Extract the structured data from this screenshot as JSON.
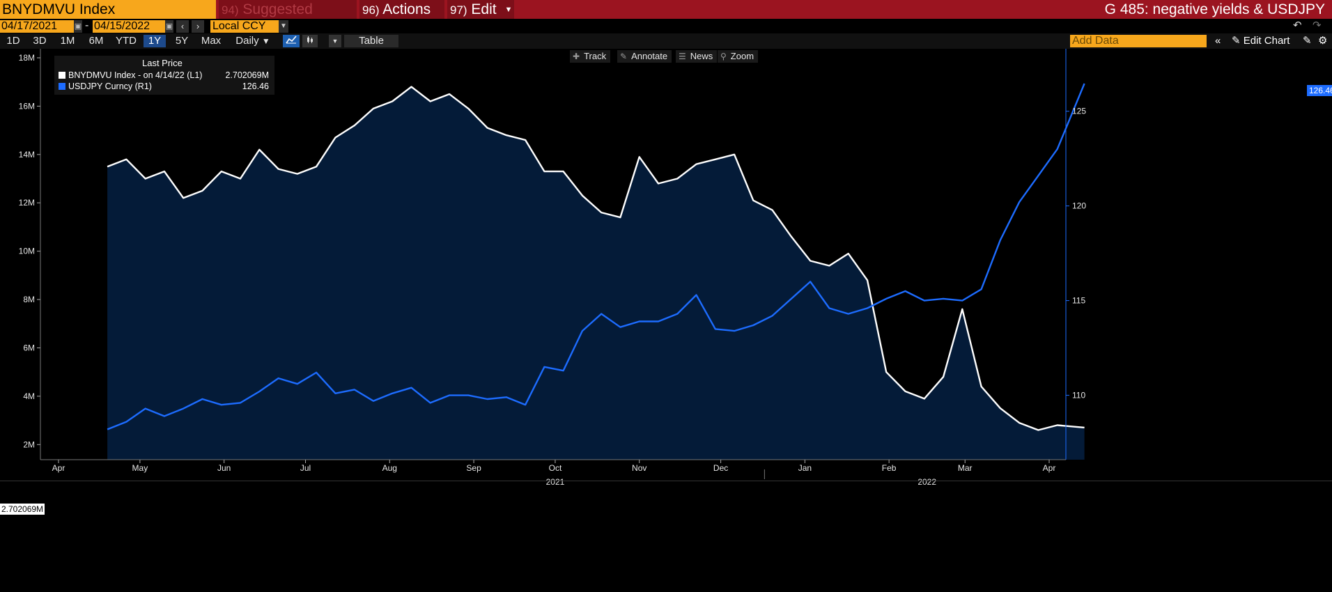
{
  "header": {
    "ticker": "BNYDMVU Index",
    "menus": [
      {
        "num": "94)",
        "label": "Suggested Charts"
      },
      {
        "num": "96)",
        "label": "Actions"
      },
      {
        "num": "97)",
        "label": "Edit"
      }
    ],
    "chart_title": "G 485: negative yields & USDJPY"
  },
  "date_range": {
    "start": "04/17/2021",
    "separator": "-",
    "end": "04/15/2022",
    "currency": "Local CCY"
  },
  "toolbar": {
    "periods": [
      "1D",
      "3D",
      "1M",
      "6M",
      "YTD",
      "1Y",
      "5Y",
      "Max"
    ],
    "active_period": "1Y",
    "frequency": "Daily",
    "table_label": "Table",
    "add_data_placeholder": "Add Data",
    "edit_chart_label": "Edit Chart"
  },
  "chart_tools": [
    "Track",
    "Annotate",
    "News",
    "Zoom"
  ],
  "legend": {
    "header": "Last Price",
    "rows": [
      {
        "label": "BNYDMVU Index -  on 4/14/22  (L1)",
        "value": "2.702069M",
        "color": "#ffffff"
      },
      {
        "label": "USDJPY Curncy  (R1)",
        "value": "126.46",
        "color": "#1d6cff"
      }
    ]
  },
  "tags": {
    "left": "2.702069M",
    "right": "126.46"
  },
  "chart_data": {
    "type": "line",
    "x_start": "2021-04-19",
    "x_end": "2022-04-14",
    "x_ticks": [
      {
        "label": "Apr",
        "date": "2021-04-01"
      },
      {
        "label": "May",
        "date": "2021-05-01"
      },
      {
        "label": "Jun",
        "date": "2021-06-01"
      },
      {
        "label": "Jul",
        "date": "2021-07-01"
      },
      {
        "label": "Aug",
        "date": "2021-08-01"
      },
      {
        "label": "Sep",
        "date": "2021-09-01"
      },
      {
        "label": "Oct",
        "date": "2021-10-01"
      },
      {
        "label": "Nov",
        "date": "2021-11-01"
      },
      {
        "label": "Dec",
        "date": "2021-12-01"
      },
      {
        "label": "Jan",
        "date": "2022-01-01"
      },
      {
        "label": "Feb",
        "date": "2022-02-01"
      },
      {
        "label": "Mar",
        "date": "2022-03-01"
      },
      {
        "label": "Apr",
        "date": "2022-04-01"
      }
    ],
    "year_labels": [
      {
        "label": "2021",
        "date": "2021-10-01"
      },
      {
        "label": "2022",
        "date": "2022-02-15"
      }
    ],
    "y_left": {
      "min": 1000000,
      "max": 18000000,
      "ticks": [
        2000000,
        4000000,
        6000000,
        8000000,
        10000000,
        12000000,
        14000000,
        16000000,
        18000000
      ],
      "tick_labels": [
        "2M",
        "4M",
        "6M",
        "8M",
        "10M",
        "12M",
        "14M",
        "16M",
        "18M"
      ]
    },
    "y_right": {
      "min": 106.6,
      "max": 128.3,
      "ticks": [
        110,
        115,
        120,
        125
      ],
      "tick_labels": [
        "110",
        "115",
        "120",
        "125"
      ]
    },
    "series": [
      {
        "name": "BNYDMVU Index",
        "axis": "left",
        "color": "#ffffff",
        "fill": "#041b38",
        "points": [
          [
            "2021-04-19",
            13500000
          ],
          [
            "2021-04-26",
            13800000
          ],
          [
            "2021-05-03",
            13000000
          ],
          [
            "2021-05-10",
            13300000
          ],
          [
            "2021-05-17",
            12200000
          ],
          [
            "2021-05-24",
            12500000
          ],
          [
            "2021-05-31",
            13300000
          ],
          [
            "2021-06-07",
            13000000
          ],
          [
            "2021-06-14",
            14200000
          ],
          [
            "2021-06-21",
            13400000
          ],
          [
            "2021-06-28",
            13200000
          ],
          [
            "2021-07-05",
            13500000
          ],
          [
            "2021-07-12",
            14700000
          ],
          [
            "2021-07-19",
            15200000
          ],
          [
            "2021-07-26",
            15900000
          ],
          [
            "2021-08-02",
            16200000
          ],
          [
            "2021-08-09",
            16800000
          ],
          [
            "2021-08-16",
            16200000
          ],
          [
            "2021-08-23",
            16500000
          ],
          [
            "2021-08-30",
            15900000
          ],
          [
            "2021-09-06",
            15100000
          ],
          [
            "2021-09-13",
            14800000
          ],
          [
            "2021-09-20",
            14600000
          ],
          [
            "2021-09-27",
            13300000
          ],
          [
            "2021-10-04",
            13300000
          ],
          [
            "2021-10-11",
            12300000
          ],
          [
            "2021-10-18",
            11600000
          ],
          [
            "2021-10-25",
            11400000
          ],
          [
            "2021-11-01",
            13900000
          ],
          [
            "2021-11-08",
            12800000
          ],
          [
            "2021-11-15",
            13000000
          ],
          [
            "2021-11-22",
            13600000
          ],
          [
            "2021-11-29",
            13800000
          ],
          [
            "2021-12-06",
            14000000
          ],
          [
            "2021-12-13",
            12100000
          ],
          [
            "2021-12-20",
            11700000
          ],
          [
            "2021-12-27",
            10600000
          ],
          [
            "2022-01-03",
            9600000
          ],
          [
            "2022-01-10",
            9400000
          ],
          [
            "2022-01-17",
            9900000
          ],
          [
            "2022-01-24",
            8800000
          ],
          [
            "2022-01-31",
            5000000
          ],
          [
            "2022-02-07",
            4200000
          ],
          [
            "2022-02-14",
            3900000
          ],
          [
            "2022-02-21",
            4800000
          ],
          [
            "2022-02-28",
            7600000
          ],
          [
            "2022-03-07",
            4400000
          ],
          [
            "2022-03-14",
            3500000
          ],
          [
            "2022-03-21",
            2900000
          ],
          [
            "2022-03-28",
            2600000
          ],
          [
            "2022-04-04",
            2800000
          ],
          [
            "2022-04-14",
            2702069
          ]
        ]
      },
      {
        "name": "USDJPY Curncy",
        "axis": "right",
        "color": "#1d6cff",
        "points": [
          [
            "2021-04-19",
            108.2
          ],
          [
            "2021-04-26",
            108.6
          ],
          [
            "2021-05-03",
            109.3
          ],
          [
            "2021-05-10",
            108.9
          ],
          [
            "2021-05-17",
            109.3
          ],
          [
            "2021-05-24",
            109.8
          ],
          [
            "2021-05-31",
            109.5
          ],
          [
            "2021-06-07",
            109.6
          ],
          [
            "2021-06-14",
            110.2
          ],
          [
            "2021-06-21",
            110.9
          ],
          [
            "2021-06-28",
            110.6
          ],
          [
            "2021-07-05",
            111.2
          ],
          [
            "2021-07-12",
            110.1
          ],
          [
            "2021-07-19",
            110.3
          ],
          [
            "2021-07-26",
            109.7
          ],
          [
            "2021-08-02",
            110.1
          ],
          [
            "2021-08-09",
            110.4
          ],
          [
            "2021-08-16",
            109.6
          ],
          [
            "2021-08-23",
            110.0
          ],
          [
            "2021-08-30",
            110.0
          ],
          [
            "2021-09-06",
            109.8
          ],
          [
            "2021-09-13",
            109.9
          ],
          [
            "2021-09-20",
            109.5
          ],
          [
            "2021-09-27",
            111.5
          ],
          [
            "2021-10-04",
            111.3
          ],
          [
            "2021-10-11",
            113.4
          ],
          [
            "2021-10-18",
            114.3
          ],
          [
            "2021-10-25",
            113.6
          ],
          [
            "2021-11-01",
            113.9
          ],
          [
            "2021-11-08",
            113.9
          ],
          [
            "2021-11-15",
            114.3
          ],
          [
            "2021-11-22",
            115.3
          ],
          [
            "2021-11-29",
            113.5
          ],
          [
            "2021-12-06",
            113.4
          ],
          [
            "2021-12-13",
            113.7
          ],
          [
            "2021-12-20",
            114.2
          ],
          [
            "2021-12-27",
            115.1
          ],
          [
            "2022-01-03",
            116.0
          ],
          [
            "2022-01-10",
            114.6
          ],
          [
            "2022-01-17",
            114.3
          ],
          [
            "2022-01-24",
            114.6
          ],
          [
            "2022-01-31",
            115.1
          ],
          [
            "2022-02-07",
            115.5
          ],
          [
            "2022-02-14",
            115.0
          ],
          [
            "2022-02-21",
            115.1
          ],
          [
            "2022-02-28",
            115.0
          ],
          [
            "2022-03-07",
            115.6
          ],
          [
            "2022-03-14",
            118.2
          ],
          [
            "2022-03-21",
            120.2
          ],
          [
            "2022-03-28",
            121.6
          ],
          [
            "2022-04-04",
            123.0
          ],
          [
            "2022-04-14",
            126.46
          ]
        ]
      }
    ]
  }
}
